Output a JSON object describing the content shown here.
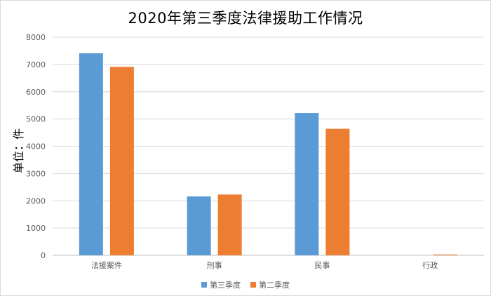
{
  "chart_data": {
    "type": "bar",
    "title": "2020年第三季度法律援助工作情况",
    "xlabel": "",
    "ylabel": "单位：件",
    "ylim": [
      0,
      8000
    ],
    "yticks": [
      0,
      1000,
      2000,
      3000,
      4000,
      5000,
      6000,
      7000,
      8000
    ],
    "grid": true,
    "legend_position": "bottom",
    "categories": [
      "法援案件",
      "刑事",
      "民事",
      "行政"
    ],
    "series": [
      {
        "name": "第三季度",
        "color": "#5b9bd5",
        "values": [
          7410,
          2160,
          5220,
          0
        ]
      },
      {
        "name": "第二季度",
        "color": "#ed7d31",
        "values": [
          6910,
          2230,
          4640,
          30
        ]
      }
    ]
  }
}
